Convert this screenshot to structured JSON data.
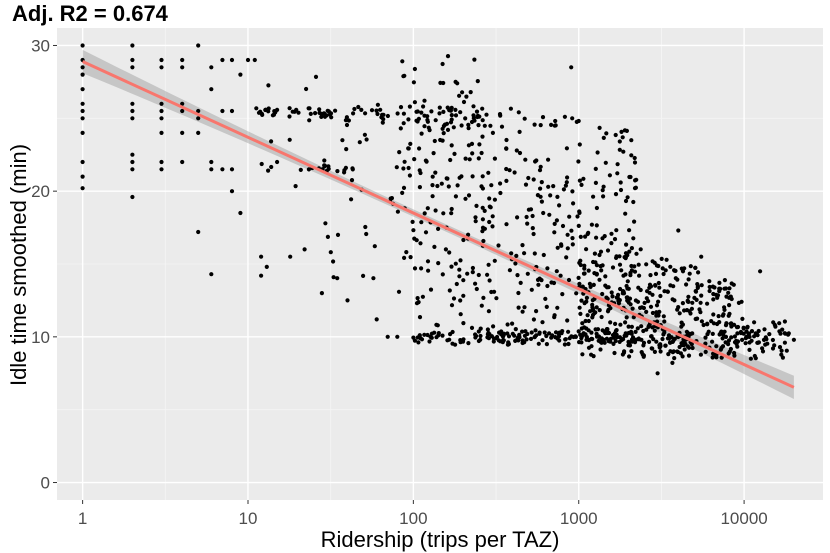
{
  "chart_data": {
    "type": "scatter",
    "title": "Adj. R2 =  0.674",
    "xlabel": "Ridership (trips per TAZ)",
    "ylabel": "Idle time smoothed (min)",
    "x_scale": "log10",
    "xlim": [
      0.7,
      30000
    ],
    "ylim": [
      -1.2,
      31.2
    ],
    "x_ticks": [
      1,
      10,
      100,
      1000,
      10000
    ],
    "x_tick_labels": [
      "1",
      "10",
      "100",
      "1000",
      "10000"
    ],
    "y_ticks": [
      0,
      10,
      20,
      30
    ],
    "y_tick_labels": [
      "0",
      "10",
      "20",
      "30"
    ],
    "grid": true,
    "legend": "none",
    "fit": {
      "method": "linear regression on log10(x)",
      "intercept": 28.9,
      "slope_per_decade": -5.2,
      "x_range": [
        1,
        20000
      ],
      "ci_halfwidth_min": 0.25,
      "ci_halfwidth_max": 0.8
    },
    "points_description": "approx. 1000 TAZ observations; idle time decreasing with log ridership, from ~20-30 min at 1 trip to ~8-12 min above 3000 trips",
    "points": [
      [
        1,
        30
      ],
      [
        1,
        29
      ],
      [
        1,
        28.5
      ],
      [
        1,
        28
      ],
      [
        1,
        27
      ],
      [
        1,
        26
      ],
      [
        1,
        25.5
      ],
      [
        1,
        25
      ],
      [
        1,
        24
      ],
      [
        1,
        22
      ],
      [
        1,
        21
      ],
      [
        1,
        20.2
      ],
      [
        2,
        30
      ],
      [
        2,
        29
      ],
      [
        2,
        28.5
      ],
      [
        2,
        26
      ],
      [
        2,
        25.5
      ],
      [
        2,
        25
      ],
      [
        2,
        22.5
      ],
      [
        2,
        22
      ],
      [
        2,
        21.5
      ],
      [
        2,
        19.6
      ],
      [
        3,
        29
      ],
      [
        3,
        28.5
      ],
      [
        3,
        26
      ],
      [
        3,
        25.5
      ],
      [
        3,
        25
      ],
      [
        3,
        24
      ],
      [
        3,
        22
      ],
      [
        3,
        21.5
      ],
      [
        4,
        29
      ],
      [
        4,
        28.5
      ],
      [
        4,
        26
      ],
      [
        4,
        25.5
      ],
      [
        4,
        24
      ],
      [
        4,
        22
      ],
      [
        5,
        30
      ],
      [
        5,
        25.5
      ],
      [
        5,
        25
      ],
      [
        5,
        24
      ],
      [
        5,
        17.2
      ],
      [
        6,
        14.3
      ],
      [
        6,
        22
      ],
      [
        6,
        21.5
      ],
      [
        6,
        27
      ],
      [
        6,
        28.5
      ],
      [
        7,
        29
      ],
      [
        7,
        25.5
      ],
      [
        7,
        21.5
      ],
      [
        8,
        29
      ],
      [
        8,
        25.5
      ],
      [
        8,
        21.5
      ],
      [
        8,
        20
      ],
      [
        9,
        18.5
      ],
      [
        9,
        28
      ],
      [
        10,
        29
      ],
      [
        11,
        29
      ],
      [
        12,
        15.5
      ],
      [
        12,
        14.2
      ],
      [
        13,
        14.8
      ],
      [
        15,
        22
      ],
      [
        18,
        15.5
      ],
      [
        22,
        16
      ],
      [
        28,
        13
      ],
      [
        35,
        17
      ],
      [
        40,
        12.5
      ],
      [
        60,
        11.2
      ],
      [
        70,
        10
      ],
      [
        80,
        10
      ],
      [
        180,
        27.5
      ],
      [
        900,
        28.5
      ],
      [
        3000,
        7.5
      ],
      [
        4000,
        17.3
      ],
      [
        5500,
        15.5
      ],
      [
        8000,
        9.5
      ],
      [
        11000,
        8.5
      ],
      [
        12500,
        14.5
      ],
      [
        15000,
        11
      ],
      [
        17000,
        10.5
      ],
      [
        20000,
        9.8
      ]
    ]
  }
}
